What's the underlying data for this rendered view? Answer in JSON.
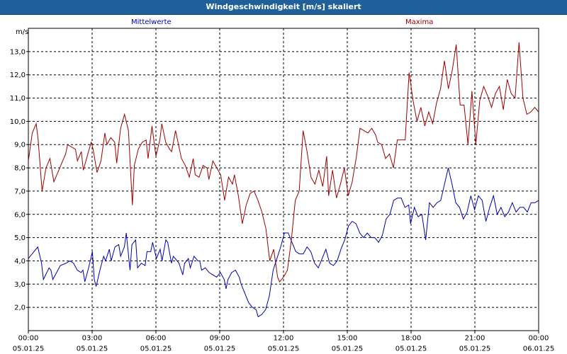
{
  "window": {
    "title": "Windgeschwindigkeit [m/s] skaliert"
  },
  "chart_data": {
    "type": "line",
    "title": "Windgeschwindigkeit [m/s] skaliert",
    "ylabel": "m/s",
    "ylim": [
      1.0,
      14.0
    ],
    "xlim_hours": [
      0,
      24
    ],
    "y_ticks": [
      "2,0",
      "3,0",
      "4,0",
      "5,0",
      "6,0",
      "7,0",
      "8,0",
      "9,0",
      "10,0",
      "11,0",
      "12,0",
      "13,0"
    ],
    "x_ticks": [
      {
        "time": "00:00",
        "date": "05.01.25"
      },
      {
        "time": "03:00",
        "date": "05.01.25"
      },
      {
        "time": "06:00",
        "date": "05.01.25"
      },
      {
        "time": "09:00",
        "date": "05.01.25"
      },
      {
        "time": "12:00",
        "date": "05.01.25"
      },
      {
        "time": "15:00",
        "date": "05.01.25"
      },
      {
        "time": "18:00",
        "date": "05.01.25"
      },
      {
        "time": "21:00",
        "date": "05.01.25"
      },
      {
        "time": "00:00",
        "date": "06.01.25"
      }
    ],
    "grid": true,
    "series": [
      {
        "name": "Mittelwerte",
        "color": "#0000b4",
        "values": [
          [
            0.0,
            4.1
          ],
          [
            0.3,
            4.4
          ],
          [
            0.5,
            4.6
          ],
          [
            0.7,
            3.9
          ],
          [
            0.8,
            3.2
          ],
          [
            1.1,
            3.7
          ],
          [
            1.2,
            3.6
          ],
          [
            1.3,
            3.2
          ],
          [
            1.5,
            3.5
          ],
          [
            1.7,
            3.8
          ],
          [
            2.0,
            3.9
          ],
          [
            2.2,
            4.0
          ],
          [
            2.4,
            3.9
          ],
          [
            2.6,
            3.6
          ],
          [
            2.8,
            3.5
          ],
          [
            2.9,
            3.6
          ],
          [
            3.0,
            3.1
          ],
          [
            3.2,
            3.7
          ],
          [
            3.4,
            4.4
          ],
          [
            3.5,
            3.2
          ],
          [
            3.6,
            2.9
          ],
          [
            3.8,
            3.6
          ],
          [
            4.0,
            4.2
          ],
          [
            4.1,
            4.0
          ],
          [
            4.3,
            4.5
          ],
          [
            4.4,
            4.0
          ],
          [
            4.6,
            4.6
          ],
          [
            4.8,
            4.7
          ],
          [
            4.9,
            4.2
          ],
          [
            5.1,
            4.6
          ],
          [
            5.2,
            5.2
          ],
          [
            5.4,
            3.6
          ],
          [
            5.5,
            4.7
          ],
          [
            5.7,
            4.9
          ],
          [
            5.8,
            3.7
          ],
          [
            6.0,
            3.9
          ],
          [
            6.2,
            3.8
          ],
          [
            6.3,
            4.4
          ],
          [
            6.5,
            4.4
          ],
          [
            6.6,
            4.8
          ],
          [
            6.8,
            4.1
          ],
          [
            7.0,
            4.5
          ],
          [
            7.1,
            4.0
          ],
          [
            7.3,
            4.9
          ],
          [
            7.4,
            4.8
          ],
          [
            7.6,
            3.9
          ],
          [
            7.7,
            4.2
          ],
          [
            7.9,
            4.0
          ],
          [
            8.0,
            3.9
          ],
          [
            8.2,
            3.4
          ],
          [
            8.3,
            3.9
          ],
          [
            8.5,
            4.1
          ],
          [
            8.6,
            3.7
          ],
          [
            8.8,
            4.2
          ],
          [
            8.9,
            4.1
          ],
          [
            9.0,
            4.0
          ],
          [
            9.1,
            4.0
          ],
          [
            9.2,
            3.6
          ],
          [
            9.4,
            3.7
          ],
          [
            9.6,
            3.5
          ],
          [
            9.8,
            3.4
          ],
          [
            10.0,
            3.3
          ],
          [
            10.2,
            3.5
          ],
          [
            10.4,
            3.2
          ],
          [
            10.5,
            2.8
          ],
          [
            10.6,
            3.2
          ],
          [
            10.8,
            3.5
          ],
          [
            11.0,
            3.6
          ],
          [
            11.2,
            3.3
          ],
          [
            11.3,
            3.0
          ],
          [
            11.5,
            2.6
          ],
          [
            11.7,
            2.2
          ],
          [
            11.9,
            2.0
          ],
          [
            12.1,
            1.9
          ],
          [
            12.2,
            1.6
          ],
          [
            12.4,
            1.7
          ],
          [
            12.6,
            1.9
          ],
          [
            12.8,
            2.5
          ],
          [
            13.0,
            3.6
          ],
          [
            13.2,
            4.1
          ],
          [
            13.4,
            4.6
          ],
          [
            13.6,
            5.2
          ],
          [
            13.8,
            5.2
          ],
          [
            14.0,
            4.8
          ],
          [
            14.2,
            4.4
          ],
          [
            14.4,
            4.3
          ],
          [
            14.6,
            4.3
          ],
          [
            14.8,
            4.6
          ],
          [
            15.0,
            4.4
          ],
          [
            15.2,
            3.9
          ],
          [
            15.4,
            3.7
          ],
          [
            15.6,
            4.1
          ],
          [
            15.8,
            4.5
          ],
          [
            16.0,
            3.9
          ],
          [
            16.2,
            3.8
          ],
          [
            16.4,
            4.0
          ],
          [
            16.6,
            4.5
          ],
          [
            16.8,
            4.9
          ],
          [
            17.0,
            5.5
          ],
          [
            17.2,
            5.7
          ],
          [
            17.4,
            5.6
          ],
          [
            17.6,
            5.2
          ],
          [
            17.8,
            5.0
          ],
          [
            18.0,
            5.2
          ],
          [
            18.2,
            5.0
          ],
          [
            18.4,
            5.0
          ],
          [
            18.6,
            4.8
          ],
          [
            18.8,
            5.1
          ],
          [
            19.0,
            5.8
          ],
          [
            19.2,
            6.0
          ],
          [
            19.4,
            6.6
          ],
          [
            19.6,
            6.7
          ],
          [
            19.8,
            6.7
          ],
          [
            20.0,
            6.3
          ],
          [
            20.2,
            6.4
          ],
          [
            20.3,
            5.6
          ],
          [
            20.5,
            6.3
          ],
          [
            20.7,
            5.9
          ],
          [
            20.9,
            6.0
          ],
          [
            21.1,
            4.9
          ],
          [
            21.3,
            6.5
          ],
          [
            21.5,
            6.3
          ],
          [
            21.7,
            6.5
          ],
          [
            21.9,
            6.6
          ],
          [
            22.1,
            7.3
          ],
          [
            22.3,
            8.0
          ],
          [
            22.5,
            7.3
          ],
          [
            22.7,
            6.5
          ],
          [
            22.9,
            6.3
          ],
          [
            23.1,
            5.8
          ],
          [
            23.3,
            6.1
          ],
          [
            23.5,
            6.8
          ],
          [
            23.7,
            6.2
          ],
          [
            23.9,
            6.8
          ],
          [
            24.1,
            6.6
          ],
          [
            24.3,
            5.7
          ],
          [
            24.5,
            6.3
          ],
          [
            24.7,
            6.8
          ],
          [
            24.9,
            6.0
          ],
          [
            25.1,
            6.3
          ],
          [
            25.3,
            5.9
          ],
          [
            25.5,
            6.1
          ],
          [
            25.7,
            6.5
          ],
          [
            25.9,
            6.1
          ],
          [
            26.1,
            6.3
          ],
          [
            26.3,
            6.3
          ],
          [
            26.5,
            6.1
          ],
          [
            26.7,
            6.5
          ],
          [
            26.9,
            6.5
          ],
          [
            27.1,
            6.6
          ]
        ]
      },
      {
        "name": "Maxima",
        "color": "#a00000",
        "values": [
          [
            0.0,
            8.3
          ],
          [
            0.2,
            9.5
          ],
          [
            0.4,
            9.9
          ],
          [
            0.5,
            9.2
          ],
          [
            0.7,
            7.0
          ],
          [
            0.9,
            8.0
          ],
          [
            1.1,
            8.4
          ],
          [
            1.3,
            7.4
          ],
          [
            1.5,
            7.8
          ],
          [
            1.7,
            8.2
          ],
          [
            1.9,
            8.6
          ],
          [
            2.0,
            9.0
          ],
          [
            2.2,
            8.9
          ],
          [
            2.4,
            8.8
          ],
          [
            2.5,
            8.3
          ],
          [
            2.7,
            8.7
          ],
          [
            2.8,
            7.9
          ],
          [
            3.0,
            8.5
          ],
          [
            3.2,
            9.1
          ],
          [
            3.3,
            8.8
          ],
          [
            3.5,
            7.8
          ],
          [
            3.7,
            8.3
          ],
          [
            3.9,
            9.5
          ],
          [
            4.0,
            9.0
          ],
          [
            4.2,
            9.3
          ],
          [
            4.4,
            9.1
          ],
          [
            4.5,
            8.2
          ],
          [
            4.7,
            9.7
          ],
          [
            4.9,
            10.3
          ],
          [
            5.1,
            9.6
          ],
          [
            5.3,
            6.4
          ],
          [
            5.4,
            8.1
          ],
          [
            5.6,
            8.8
          ],
          [
            5.8,
            9.1
          ],
          [
            6.0,
            9.2
          ],
          [
            6.1,
            8.4
          ],
          [
            6.3,
            9.8
          ],
          [
            6.5,
            8.5
          ],
          [
            6.7,
            9.2
          ],
          [
            6.8,
            9.9
          ],
          [
            7.0,
            9.1
          ],
          [
            7.2,
            8.8
          ],
          [
            7.3,
            8.7
          ],
          [
            7.5,
            9.6
          ],
          [
            7.7,
            8.8
          ],
          [
            7.8,
            8.4
          ],
          [
            8.0,
            8.1
          ],
          [
            8.2,
            7.6
          ],
          [
            8.4,
            8.4
          ],
          [
            8.5,
            7.7
          ],
          [
            8.7,
            7.6
          ],
          [
            8.9,
            8.1
          ],
          [
            9.1,
            8.0
          ],
          [
            9.2,
            7.5
          ],
          [
            9.4,
            8.3
          ],
          [
            9.6,
            8.0
          ],
          [
            9.8,
            7.7
          ],
          [
            10.0,
            6.6
          ],
          [
            10.2,
            7.6
          ],
          [
            10.4,
            7.3
          ],
          [
            10.5,
            7.7
          ],
          [
            10.7,
            6.8
          ],
          [
            10.9,
            5.6
          ],
          [
            11.1,
            6.4
          ],
          [
            11.3,
            6.9
          ],
          [
            11.5,
            7.0
          ],
          [
            11.7,
            6.6
          ],
          [
            11.9,
            6.1
          ],
          [
            12.1,
            5.4
          ],
          [
            12.3,
            4.0
          ],
          [
            12.5,
            4.5
          ],
          [
            12.7,
            3.3
          ],
          [
            12.8,
            3.1
          ],
          [
            13.0,
            3.3
          ],
          [
            13.2,
            3.6
          ],
          [
            13.4,
            4.9
          ],
          [
            13.6,
            6.6
          ],
          [
            13.8,
            7.0
          ],
          [
            14.0,
            9.6
          ],
          [
            14.2,
            8.7
          ],
          [
            14.4,
            7.6
          ],
          [
            14.6,
            7.3
          ],
          [
            14.8,
            7.9
          ],
          [
            15.0,
            7.2
          ],
          [
            15.2,
            8.5
          ],
          [
            15.3,
            6.8
          ],
          [
            15.5,
            7.9
          ],
          [
            15.7,
            6.7
          ],
          [
            15.9,
            7.3
          ],
          [
            16.1,
            8.0
          ],
          [
            16.3,
            6.8
          ],
          [
            16.5,
            7.4
          ],
          [
            16.7,
            8.4
          ],
          [
            16.9,
            9.7
          ],
          [
            17.1,
            9.6
          ],
          [
            17.3,
            9.5
          ],
          [
            17.5,
            9.7
          ],
          [
            17.7,
            9.4
          ],
          [
            17.8,
            9.1
          ],
          [
            18.0,
            9.0
          ],
          [
            18.2,
            8.4
          ],
          [
            18.4,
            8.6
          ],
          [
            18.6,
            8.0
          ],
          [
            18.8,
            9.2
          ],
          [
            19.0,
            9.2
          ],
          [
            19.2,
            9.2
          ],
          [
            19.4,
            12.1
          ],
          [
            19.6,
            10.9
          ],
          [
            19.8,
            10.0
          ],
          [
            20.0,
            10.6
          ],
          [
            20.2,
            9.8
          ],
          [
            20.4,
            10.4
          ],
          [
            20.6,
            9.9
          ],
          [
            20.8,
            10.8
          ],
          [
            21.0,
            11.4
          ],
          [
            21.2,
            12.6
          ],
          [
            21.4,
            11.4
          ],
          [
            21.6,
            12.2
          ],
          [
            21.8,
            13.3
          ],
          [
            22.0,
            10.7
          ],
          [
            22.2,
            10.7
          ],
          [
            22.4,
            9.0
          ],
          [
            22.6,
            11.3
          ],
          [
            22.8,
            9.0
          ],
          [
            23.0,
            10.9
          ],
          [
            23.2,
            11.5
          ],
          [
            23.4,
            11.1
          ],
          [
            23.6,
            10.6
          ],
          [
            23.8,
            11.2
          ],
          [
            24.0,
            11.5
          ],
          [
            24.2,
            10.5
          ],
          [
            24.4,
            11.8
          ],
          [
            24.6,
            11.2
          ],
          [
            24.8,
            11.0
          ],
          [
            25.0,
            13.4
          ],
          [
            25.2,
            11.0
          ],
          [
            25.4,
            10.3
          ],
          [
            25.6,
            10.4
          ],
          [
            25.8,
            10.6
          ],
          [
            26.0,
            10.4
          ]
        ]
      }
    ]
  }
}
